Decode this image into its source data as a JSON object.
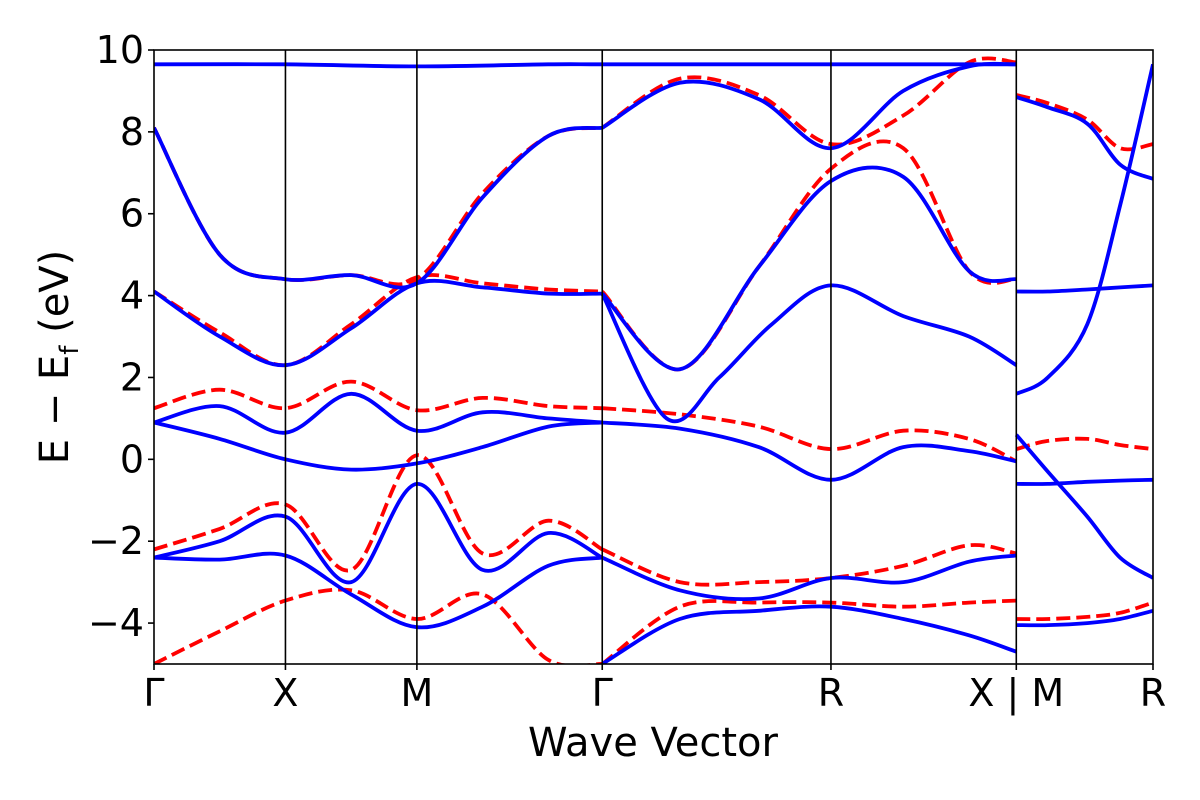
{
  "chart_data": {
    "type": "line",
    "title": "",
    "xlabel": "Wave Vector",
    "ylabel": "E − E",
    "ylabel_subscript": "f",
    "ylabel_unit": " (eV)",
    "ylim": [
      -5,
      10
    ],
    "y_ticks": [
      -4,
      -2,
      0,
      2,
      4,
      6,
      8,
      10
    ],
    "y_tick_labels": [
      "−4",
      "−2",
      "0",
      "2",
      "4",
      "6",
      "8",
      "10"
    ],
    "xlim": [
      0,
      7.6
    ],
    "k_points": [
      {
        "label": "Γ",
        "x": 0
      },
      {
        "label": "X",
        "x": 1
      },
      {
        "label": "M",
        "x": 2
      },
      {
        "label": "Γ",
        "x": 3.41
      },
      {
        "label": "R",
        "x": 5.15
      },
      {
        "label": "X | M",
        "x": 6.56
      },
      {
        "label": "R",
        "x": 7.6
      }
    ],
    "grid": false,
    "colors": {
      "spin_up": "#ff0000",
      "spin_down": "#0000ff"
    },
    "series": [
      {
        "style": "dashed",
        "color": "#ff0000",
        "x": [
          0,
          0.5,
          1,
          1.5,
          2,
          2.5,
          3,
          3.41
        ],
        "values": [
          8.1,
          5.0,
          4.4,
          4.5,
          4.4,
          6.5,
          7.9,
          8.1
        ]
      },
      {
        "style": "solid",
        "color": "#0000ff",
        "x": [
          0,
          0.5,
          1,
          1.5,
          2,
          2.5,
          3,
          3.41
        ],
        "values": [
          8.1,
          5.0,
          4.4,
          4.5,
          4.3,
          6.4,
          7.9,
          8.1
        ]
      },
      {
        "style": "solid",
        "color": "#0000ff",
        "x": [
          0,
          1,
          2,
          3,
          3.41,
          4.3,
          5.15,
          6.56
        ],
        "values": [
          9.65,
          9.65,
          9.6,
          9.65,
          9.65,
          9.65,
          9.65,
          9.65
        ]
      },
      {
        "style": "dashed",
        "color": "#ff0000",
        "x": [
          0,
          0.5,
          1,
          1.5,
          2,
          2.5,
          3,
          3.41
        ],
        "values": [
          4.1,
          3.1,
          2.3,
          3.3,
          4.45,
          4.3,
          4.15,
          4.1
        ]
      },
      {
        "style": "solid",
        "color": "#0000ff",
        "x": [
          0,
          0.5,
          1,
          1.5,
          2,
          2.5,
          3,
          3.41
        ],
        "values": [
          4.1,
          3.0,
          2.3,
          3.2,
          4.3,
          4.2,
          4.05,
          4.05
        ]
      },
      {
        "style": "dashed",
        "color": "#ff0000",
        "x": [
          0,
          0.5,
          1,
          1.5,
          2,
          2.5,
          3,
          3.41
        ],
        "values": [
          1.25,
          1.7,
          1.25,
          1.9,
          1.2,
          1.5,
          1.3,
          1.25
        ]
      },
      {
        "style": "solid",
        "color": "#0000ff",
        "x": [
          0,
          0.5,
          1,
          1.5,
          2,
          2.5,
          3,
          3.41
        ],
        "values": [
          0.9,
          1.3,
          0.65,
          1.6,
          0.7,
          1.15,
          1.0,
          0.9
        ]
      },
      {
        "style": "solid",
        "color": "#0000ff",
        "x": [
          0,
          0.5,
          1,
          1.5,
          2,
          2.5,
          3,
          3.41
        ],
        "values": [
          0.9,
          0.5,
          0.0,
          -0.25,
          -0.1,
          0.3,
          0.8,
          0.9
        ]
      },
      {
        "style": "dashed",
        "color": "#ff0000",
        "x": [
          0,
          0.5,
          1,
          1.5,
          2,
          2.5,
          3,
          3.41
        ],
        "values": [
          -2.2,
          -1.7,
          -1.1,
          -2.7,
          0.1,
          -2.3,
          -1.5,
          -2.2
        ]
      },
      {
        "style": "solid",
        "color": "#0000ff",
        "x": [
          0,
          0.5,
          1,
          1.5,
          2,
          2.5,
          3,
          3.41
        ],
        "values": [
          -2.4,
          -2.0,
          -1.4,
          -3.0,
          -0.6,
          -2.7,
          -1.8,
          -2.4
        ]
      },
      {
        "style": "solid",
        "color": "#0000ff",
        "x": [
          0,
          0.5,
          1,
          1.5,
          2,
          2.5,
          3,
          3.41
        ],
        "values": [
          -2.4,
          -2.45,
          -2.35,
          -3.3,
          -4.1,
          -3.6,
          -2.6,
          -2.4
        ]
      },
      {
        "style": "dashed",
        "color": "#ff0000",
        "x": [
          0,
          0.5,
          1,
          1.5,
          2,
          2.5,
          3,
          3.41
        ],
        "values": [
          -5.0,
          -4.2,
          -3.45,
          -3.2,
          -3.9,
          -3.3,
          -4.9,
          -5.0
        ]
      },
      {
        "style": "solid",
        "color": "#0000ff",
        "x": [
          3.41,
          4.0,
          4.6,
          5.15,
          5.7,
          6.2,
          6.56
        ],
        "values": [
          8.1,
          9.2,
          8.8,
          7.6,
          9.0,
          9.6,
          9.65
        ]
      },
      {
        "style": "dashed",
        "color": "#ff0000",
        "x": [
          3.41,
          4.0,
          4.6,
          5.15,
          5.7,
          6.2,
          6.56
        ],
        "values": [
          8.1,
          9.3,
          8.9,
          7.7,
          8.4,
          9.7,
          9.7
        ]
      },
      {
        "style": "solid",
        "color": "#0000ff",
        "x": [
          3.41,
          4.0,
          4.6,
          5.15,
          5.7,
          6.2,
          6.56
        ],
        "values": [
          4.05,
          2.2,
          4.7,
          6.8,
          6.9,
          4.6,
          4.4
        ]
      },
      {
        "style": "dashed",
        "color": "#ff0000",
        "x": [
          3.41,
          4.0,
          4.6,
          5.15,
          5.7,
          6.2,
          6.56
        ],
        "values": [
          4.1,
          2.2,
          4.7,
          7.1,
          7.6,
          4.6,
          4.4
        ]
      },
      {
        "style": "solid",
        "color": "#0000ff",
        "x": [
          3.41,
          3.9,
          4.3,
          4.7,
          5.15,
          5.7,
          6.2,
          6.56
        ],
        "values": [
          4.05,
          1.0,
          2.0,
          3.3,
          4.25,
          3.5,
          3.0,
          2.3
        ]
      },
      {
        "style": "dashed",
        "color": "#ff0000",
        "x": [
          3.41,
          4.0,
          4.6,
          5.15,
          5.7,
          6.2,
          6.56
        ],
        "values": [
          1.25,
          1.1,
          0.8,
          0.25,
          0.7,
          0.5,
          -0.05
        ]
      },
      {
        "style": "solid",
        "color": "#0000ff",
        "x": [
          3.41,
          4.0,
          4.6,
          5.15,
          5.7,
          6.2,
          6.56
        ],
        "values": [
          0.9,
          0.75,
          0.3,
          -0.5,
          0.3,
          0.2,
          -0.05
        ]
      },
      {
        "style": "solid",
        "color": "#0000ff",
        "x": [
          3.41,
          4.0,
          4.6,
          5.15,
          5.7,
          6.2,
          6.56
        ],
        "values": [
          -2.4,
          -3.2,
          -3.4,
          -2.9,
          -3.0,
          -2.5,
          -2.35
        ]
      },
      {
        "style": "dashed",
        "color": "#ff0000",
        "x": [
          3.41,
          4.0,
          4.6,
          5.15,
          5.7,
          6.2,
          6.56
        ],
        "values": [
          -2.2,
          -3.0,
          -3.0,
          -2.9,
          -2.6,
          -2.1,
          -2.3
        ]
      },
      {
        "style": "solid",
        "color": "#0000ff",
        "x": [
          3.41,
          4.0,
          4.6,
          5.15,
          5.7,
          6.2,
          6.56
        ],
        "values": [
          -5.0,
          -3.9,
          -3.7,
          -3.6,
          -3.9,
          -4.3,
          -4.7
        ]
      },
      {
        "style": "dashed",
        "color": "#ff0000",
        "x": [
          3.41,
          4.0,
          4.6,
          5.15,
          5.7,
          6.2,
          6.56
        ],
        "values": [
          -5.0,
          -3.6,
          -3.5,
          -3.5,
          -3.6,
          -3.5,
          -3.45
        ]
      },
      {
        "style": "solid",
        "color": "#0000ff",
        "x": [
          6.56,
          6.8,
          7.1,
          7.35,
          7.6
        ],
        "values": [
          8.85,
          8.6,
          8.2,
          7.2,
          6.85
        ]
      },
      {
        "style": "dashed",
        "color": "#ff0000",
        "x": [
          6.56,
          6.8,
          7.1,
          7.35,
          7.6
        ],
        "values": [
          8.9,
          8.7,
          8.3,
          7.6,
          7.7
        ]
      },
      {
        "style": "solid",
        "color": "#0000ff",
        "x": [
          6.56,
          6.8,
          7.1,
          7.35,
          7.6
        ],
        "values": [
          4.1,
          4.1,
          4.15,
          4.2,
          4.25
        ]
      },
      {
        "style": "solid",
        "color": "#0000ff",
        "x": [
          6.56,
          6.8,
          7.1,
          7.35,
          7.6
        ],
        "values": [
          1.6,
          2.0,
          3.3,
          6.2,
          9.65
        ]
      },
      {
        "style": "dashed",
        "color": "#ff0000",
        "x": [
          6.56,
          6.8,
          7.1,
          7.35,
          7.6
        ],
        "values": [
          0.25,
          0.45,
          0.5,
          0.35,
          0.25
        ]
      },
      {
        "style": "solid",
        "color": "#0000ff",
        "x": [
          6.56,
          6.8,
          7.1,
          7.35,
          7.6
        ],
        "values": [
          -0.6,
          -0.6,
          -0.55,
          -0.52,
          -0.5
        ]
      },
      {
        "style": "solid",
        "color": "#0000ff",
        "x": [
          6.56,
          6.8,
          7.1,
          7.35,
          7.6
        ],
        "values": [
          0.6,
          -0.3,
          -1.4,
          -2.4,
          -2.9
        ]
      },
      {
        "style": "solid",
        "color": "#0000ff",
        "x": [
          6.56,
          6.8,
          7.1,
          7.35,
          7.6
        ],
        "values": [
          -4.05,
          -4.05,
          -4.0,
          -3.9,
          -3.7
        ]
      },
      {
        "style": "dashed",
        "color": "#ff0000",
        "x": [
          6.56,
          6.8,
          7.1,
          7.35,
          7.6
        ],
        "values": [
          -3.9,
          -3.9,
          -3.85,
          -3.75,
          -3.5
        ]
      }
    ]
  }
}
